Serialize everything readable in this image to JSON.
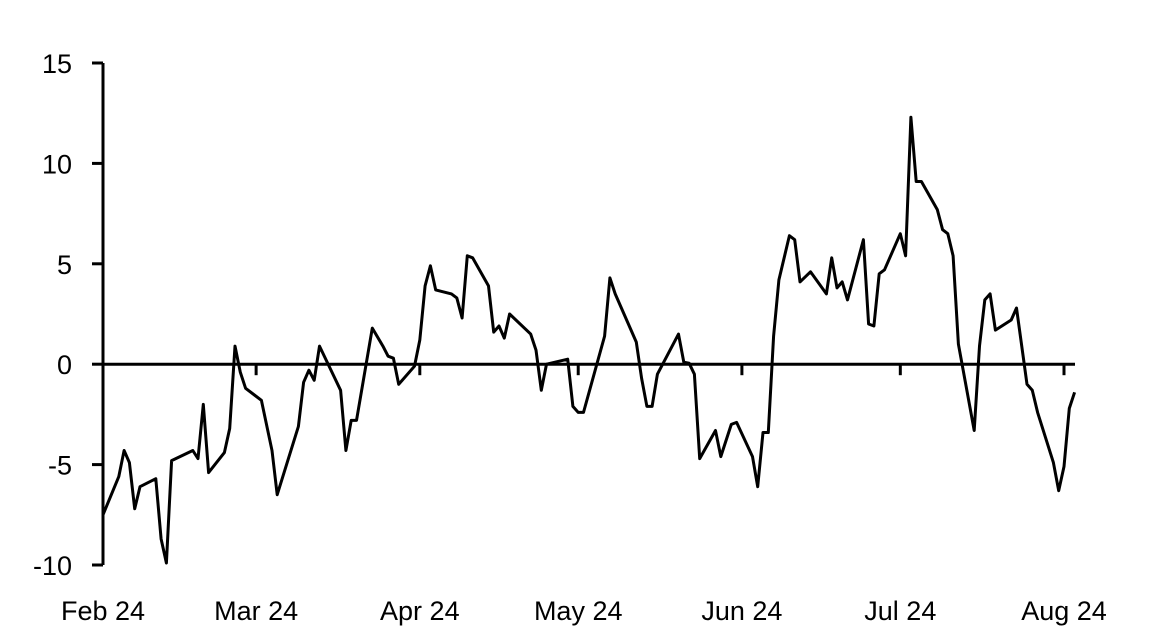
{
  "chart_data": {
    "type": "line",
    "title": "",
    "xlabel": "",
    "ylabel": "",
    "ylim": [
      -10,
      15
    ],
    "xlim": [
      "2024-02-01",
      "2024-08-04"
    ],
    "yticks": [
      "15",
      "10",
      "5",
      "0",
      "-5",
      "-10"
    ],
    "ytick_values": [
      15,
      10,
      5,
      0,
      -5,
      -10
    ],
    "xticks": [
      "Feb 24",
      "Mar 24",
      "Apr 24",
      "May 24",
      "Jun 24",
      "Jul 24",
      "Aug 24"
    ],
    "xtick_dates": [
      "2024-02-01",
      "2024-03-01",
      "2024-04-01",
      "2024-05-01",
      "2024-06-01",
      "2024-07-01",
      "2024-08-01"
    ],
    "grid": false,
    "legend": "none",
    "line_color": "#000000",
    "series": [
      {
        "x": [
          "2024-02-01",
          "2024-02-04",
          "2024-02-05",
          "2024-02-06",
          "2024-02-07",
          "2024-02-08",
          "2024-02-11",
          "2024-02-12",
          "2024-02-13",
          "2024-02-14",
          "2024-02-18",
          "2024-02-19",
          "2024-02-20",
          "2024-02-21",
          "2024-02-24",
          "2024-02-25",
          "2024-02-26",
          "2024-02-27",
          "2024-02-28",
          "2024-03-02",
          "2024-03-04",
          "2024-03-05",
          "2024-03-09",
          "2024-03-10",
          "2024-03-11",
          "2024-03-12",
          "2024-03-13",
          "2024-03-17",
          "2024-03-18",
          "2024-03-19",
          "2024-03-20",
          "2024-03-23",
          "2024-03-25",
          "2024-03-26",
          "2024-03-27",
          "2024-03-28",
          "2024-03-31",
          "2024-04-01",
          "2024-04-02",
          "2024-04-03",
          "2024-04-04",
          "2024-04-07",
          "2024-04-08",
          "2024-04-09",
          "2024-04-10",
          "2024-04-11",
          "2024-04-14",
          "2024-04-15",
          "2024-04-16",
          "2024-04-17",
          "2024-04-18",
          "2024-04-22",
          "2024-04-23",
          "2024-04-24",
          "2024-04-25",
          "2024-04-29",
          "2024-04-30",
          "2024-05-01",
          "2024-05-02",
          "2024-05-06",
          "2024-05-07",
          "2024-05-08",
          "2024-05-12",
          "2024-05-13",
          "2024-05-14",
          "2024-05-15",
          "2024-05-16",
          "2024-05-20",
          "2024-05-21",
          "2024-05-22",
          "2024-05-23",
          "2024-05-24",
          "2024-05-27",
          "2024-05-28",
          "2024-05-30",
          "2024-05-31",
          "2024-06-03",
          "2024-06-04",
          "2024-06-05",
          "2024-06-06",
          "2024-06-07",
          "2024-06-08",
          "2024-06-10",
          "2024-06-11",
          "2024-06-12",
          "2024-06-14",
          "2024-06-17",
          "2024-06-18",
          "2024-06-19",
          "2024-06-20",
          "2024-06-21",
          "2024-06-24",
          "2024-06-25",
          "2024-06-26",
          "2024-06-27",
          "2024-06-28",
          "2024-07-01",
          "2024-07-02",
          "2024-07-03",
          "2024-07-04",
          "2024-07-05",
          "2024-07-08",
          "2024-07-09",
          "2024-07-10",
          "2024-07-11",
          "2024-07-12",
          "2024-07-15",
          "2024-07-16",
          "2024-07-17",
          "2024-07-18",
          "2024-07-19",
          "2024-07-22",
          "2024-07-23",
          "2024-07-25",
          "2024-07-26",
          "2024-07-27",
          "2024-07-30",
          "2024-07-31",
          "2024-08-01",
          "2024-08-02",
          "2024-08-03"
        ],
        "y": [
          -7.5,
          -5.6,
          -4.3,
          -4.9,
          -7.2,
          -6.1,
          -5.7,
          -8.7,
          -9.9,
          -4.8,
          -4.3,
          -4.7,
          -2.0,
          -5.4,
          -4.4,
          -3.2,
          0.9,
          -0.4,
          -1.2,
          -1.8,
          -4.3,
          -6.5,
          -3.1,
          -0.9,
          -0.3,
          -0.8,
          0.9,
          -1.3,
          -4.3,
          -2.8,
          -2.8,
          1.8,
          0.9,
          0.4,
          0.3,
          -1.0,
          -0.1,
          1.2,
          3.9,
          4.9,
          3.7,
          3.5,
          3.3,
          2.3,
          5.4,
          5.3,
          3.9,
          1.6,
          1.9,
          1.3,
          2.5,
          1.5,
          0.7,
          -1.3,
          0.0,
          0.25,
          -2.1,
          -2.4,
          -2.4,
          1.4,
          4.3,
          3.5,
          1.1,
          -0.7,
          -2.1,
          -2.1,
          -0.5,
          1.5,
          0.1,
          0.05,
          -0.5,
          -4.7,
          -3.3,
          -4.6,
          -3.0,
          -2.9,
          -4.6,
          -6.1,
          -3.4,
          -3.4,
          1.4,
          4.2,
          6.4,
          6.2,
          4.1,
          4.6,
          3.5,
          5.3,
          3.8,
          4.1,
          3.2,
          6.2,
          2.0,
          1.9,
          4.5,
          4.7,
          6.5,
          5.4,
          12.3,
          9.1,
          9.1,
          7.7,
          6.7,
          6.5,
          5.4,
          1.0,
          -3.3,
          0.9,
          3.2,
          3.5,
          1.7,
          2.2,
          2.8,
          -1.0,
          -1.3,
          -2.4,
          -4.9,
          -6.3,
          -5.1,
          -2.2,
          -1.4
        ]
      }
    ]
  }
}
